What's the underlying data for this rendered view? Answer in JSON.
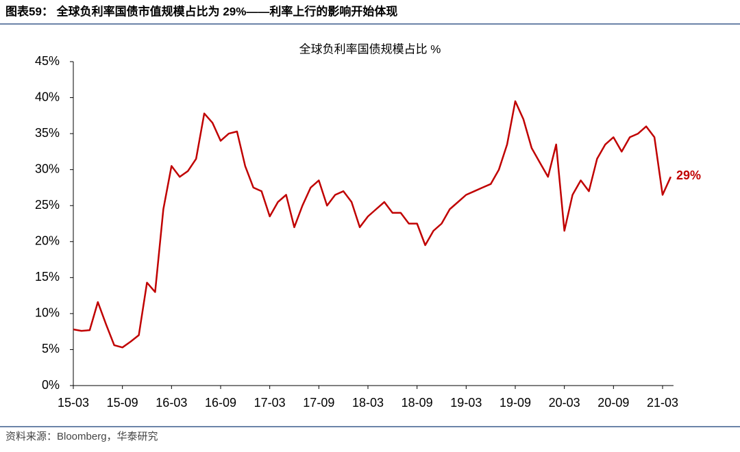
{
  "header": {
    "title": "图表59： 全球负利率国债市值规模占比为 29%——利率上行的影响开始体现"
  },
  "chart_data": {
    "type": "line",
    "title": "全球负利率国债规模占比 %",
    "color": "#c00000",
    "categories": [
      "15-03",
      null,
      null,
      null,
      null,
      null,
      "15-09",
      null,
      null,
      null,
      null,
      null,
      "16-03",
      null,
      null,
      null,
      null,
      null,
      "16-09",
      null,
      null,
      null,
      null,
      null,
      "17-03",
      null,
      null,
      null,
      null,
      null,
      "17-09",
      null,
      null,
      null,
      null,
      null,
      "18-03",
      null,
      null,
      null,
      null,
      null,
      "18-09",
      null,
      null,
      null,
      null,
      null,
      "19-03",
      null,
      null,
      null,
      null,
      null,
      "19-09",
      null,
      null,
      null,
      null,
      null,
      "20-03",
      null,
      null,
      null,
      null,
      null,
      "20-09",
      null,
      null,
      null,
      null,
      null,
      "21-03",
      null
    ],
    "values": [
      7.8,
      7.6,
      7.7,
      11.6,
      8.5,
      5.6,
      5.3,
      6.1,
      7.0,
      14.3,
      13.0,
      24.5,
      30.5,
      29.0,
      29.8,
      31.5,
      37.8,
      36.5,
      34.0,
      35.0,
      35.3,
      30.5,
      27.5,
      27.0,
      23.5,
      25.5,
      26.5,
      22.0,
      25.0,
      27.5,
      28.5,
      25.0,
      26.5,
      27.0,
      25.5,
      22.0,
      23.5,
      24.5,
      25.5,
      24.0,
      24.0,
      22.5,
      22.5,
      19.5,
      21.5,
      22.5,
      24.5,
      25.5,
      26.5,
      27.0,
      27.5,
      28.0,
      30.0,
      33.5,
      39.5,
      37.0,
      33.0,
      31.0,
      29.0,
      33.5,
      21.5,
      26.5,
      28.5,
      27.0,
      31.5,
      33.5,
      34.5,
      32.5,
      34.5,
      35.0,
      36.0,
      34.5,
      26.5,
      29.0
    ],
    "value_labels": [
      null,
      null,
      null,
      null,
      null,
      null,
      null,
      null,
      null,
      null,
      null,
      null,
      null,
      null,
      null,
      null,
      null,
      null,
      null,
      null,
      null,
      null,
      null,
      null,
      null,
      null,
      null,
      null,
      null,
      null,
      null,
      null,
      null,
      null,
      null,
      null,
      null,
      null,
      null,
      null,
      null,
      null,
      null,
      null,
      null,
      null,
      null,
      null,
      null,
      null,
      null,
      null,
      null,
      null,
      null,
      null,
      null,
      null,
      null,
      null,
      null,
      null,
      null,
      null,
      null,
      null,
      null,
      null,
      null,
      null,
      null,
      null,
      null,
      "29%"
    ],
    "ylim": [
      0,
      45
    ],
    "yticks": [
      {
        "value": 0,
        "label": "0%"
      },
      {
        "value": 5,
        "label": "5%"
      },
      {
        "value": 10,
        "label": "10%"
      },
      {
        "value": 15,
        "label": "15%"
      },
      {
        "value": 20,
        "label": "20%"
      },
      {
        "value": 25,
        "label": "25%"
      },
      {
        "value": 30,
        "label": "30%"
      },
      {
        "value": 35,
        "label": "35%"
      },
      {
        "value": 40,
        "label": "40%"
      },
      {
        "value": 45,
        "label": "45%"
      }
    ],
    "grid": false
  },
  "footer": {
    "source": "资料来源：Bloomberg，华泰研究"
  }
}
